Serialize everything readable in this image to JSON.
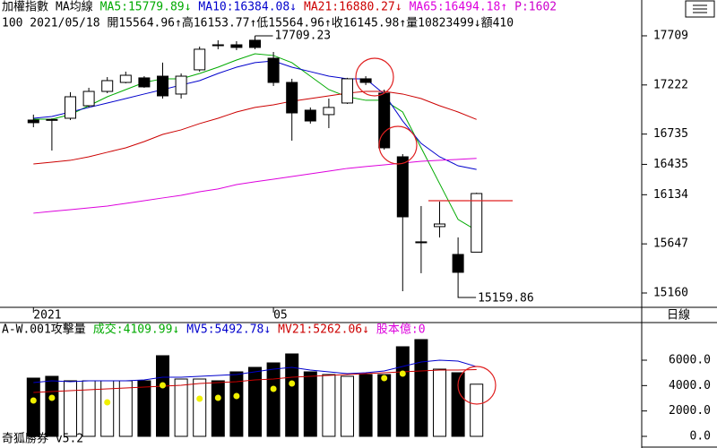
{
  "chart_data": [
    {
      "type": "candlestick",
      "title": "加權指數",
      "title_color": "#000000",
      "indicator": "MA均線",
      "info": "100 2021/05/18 開15564.96↑高16153.77↑低15564.96↑收16145.98↑量10823499↓額410",
      "extra_label": {
        "text": "P:1602",
        "color": "#cc00cc"
      },
      "max_label": "17709.23",
      "min_label": "15159.86",
      "period": "日線",
      "categories": [
        "2021",
        null,
        null,
        null,
        null,
        null,
        null,
        null,
        null,
        null,
        null,
        null,
        null,
        "05",
        null,
        null,
        null,
        null,
        null,
        null,
        null,
        null,
        null,
        null,
        null
      ],
      "open": [
        16874,
        16880,
        16892,
        17016,
        17158,
        17247,
        17292,
        17309,
        17132,
        17372,
        17620,
        17620,
        17665,
        17487,
        17247,
        16972,
        16928,
        17043,
        17283,
        17141,
        16510,
        15667,
        15818,
        15542,
        15564.96
      ],
      "high": [
        16928,
        16890,
        17150,
        17194,
        17300,
        17354,
        17309,
        17443,
        17336,
        17602,
        17665,
        17656,
        17709.23,
        17549,
        17283,
        16999,
        17087,
        17292,
        17309,
        17176,
        16537,
        16022,
        16066,
        15711,
        16153.77
      ],
      "low": [
        16803,
        16572,
        16874,
        16999,
        17141,
        17238,
        17194,
        17087,
        17087,
        17354,
        17576,
        17567,
        17576,
        17212,
        16670,
        16839,
        16794,
        17034,
        17221,
        16581,
        15178,
        15356,
        15711,
        15159.86,
        15564.96
      ],
      "close": [
        16848,
        16875,
        17105,
        17158,
        17265,
        17318,
        17203,
        17114,
        17309,
        17576,
        17616,
        17594,
        17594,
        17247,
        16945,
        16865,
        16999,
        17283,
        17247,
        16599,
        15915,
        15658,
        15844,
        15365,
        16145.98
      ],
      "series": [
        {
          "name": "MA5",
          "label": "MA5:15779.89↓",
          "color": "#00aa00",
          "values": [
            16883,
            16883,
            16928,
            17016,
            17105,
            17176,
            17247,
            17283,
            17283,
            17336,
            17398,
            17469,
            17531,
            17514,
            17443,
            17309,
            17176,
            17105,
            17070,
            17070,
            16954,
            16599,
            16244,
            15889,
            15779.89
          ]
        },
        {
          "name": "MA10",
          "label": "MA10:16384.08↓",
          "color": "#0000cc",
          "values": [
            16892,
            16910,
            16954,
            16999,
            17043,
            17087,
            17132,
            17176,
            17221,
            17265,
            17336,
            17398,
            17443,
            17460,
            17398,
            17354,
            17309,
            17283,
            17283,
            17132,
            16865,
            16643,
            16510,
            16421,
            16384.08
          ]
        },
        {
          "name": "MA21",
          "label": "MA21:16880.27↓",
          "color": "#cc0000",
          "values": [
            16439,
            16457,
            16475,
            16510,
            16555,
            16599,
            16661,
            16732,
            16777,
            16839,
            16892,
            16954,
            16999,
            17025,
            17061,
            17087,
            17114,
            17141,
            17158,
            17158,
            17132,
            17087,
            17016,
            16954,
            16880.27
          ]
        },
        {
          "name": "MA65",
          "label": "MA65:16494.18↑",
          "color": "#dd00dd",
          "values": [
            15951,
            15969,
            15986,
            16004,
            16022,
            16048,
            16075,
            16102,
            16128,
            16164,
            16191,
            16235,
            16262,
            16288,
            16315,
            16341,
            16368,
            16395,
            16413,
            16430,
            16448,
            16466,
            16475,
            16484,
            16494.18
          ]
        }
      ],
      "ylim": [
        15018,
        18064
      ],
      "yticks": [
        15160,
        15647,
        16134,
        16435,
        16735,
        17222,
        17709
      ]
    },
    {
      "type": "bar",
      "title": "A-W.001攻擊量",
      "title_color": "#000000",
      "extra_label": {
        "text": "股本億:0",
        "color": "#dd00dd"
      },
      "values": [
        4589,
        4730,
        4377,
        4377,
        4377,
        4377,
        4377,
        6354,
        4518,
        4518,
        4377,
        5083,
        5436,
        5789,
        6495,
        5083,
        4871,
        4730,
        4871,
        4871,
        7060,
        7625,
        5295,
        5013,
        4109.99
      ],
      "value_name": "成交",
      "value_label": "成交:4109.99↓",
      "value_label_color": "#00aa00",
      "markers": {
        "color": "#f0f000",
        "values": [
          2824,
          3036,
          null,
          null,
          2683,
          null,
          null,
          4024,
          null,
          2965,
          3036,
          3177,
          null,
          3742,
          4165,
          null,
          null,
          null,
          null,
          4589,
          4942,
          null,
          null,
          null,
          null
        ]
      },
      "series": [
        {
          "name": "MV5",
          "label": "MV5:5492.78↓",
          "color": "#0000cc",
          "values": [
            4236,
            4377,
            4307,
            4377,
            4377,
            4377,
            4448,
            4660,
            4660,
            4730,
            4801,
            4871,
            5083,
            5295,
            5436,
            5224,
            5083,
            4942,
            5013,
            5154,
            5507,
            5860,
            6001,
            5930,
            5492.78
          ]
        },
        {
          "name": "MV21",
          "label": "MV21:5262.06↓",
          "color": "#cc0000",
          "values": [
            3459,
            3530,
            3601,
            3671,
            3742,
            3812,
            3883,
            3954,
            4024,
            4165,
            4236,
            4307,
            4448,
            4518,
            4660,
            4730,
            4801,
            4871,
            4942,
            5013,
            5083,
            5154,
            5224,
            5224,
            5262.06
          ]
        }
      ],
      "ylim": [
        -565,
        8966
      ],
      "yticks": [
        {
          "value": 0,
          "label": "0.0"
        },
        {
          "value": 2000,
          "label": "2000.0"
        },
        {
          "value": 4000,
          "label": "4000.0"
        },
        {
          "value": 6000,
          "label": "6000.0"
        }
      ]
    }
  ],
  "footer": "奇狐勝券  v5.2"
}
